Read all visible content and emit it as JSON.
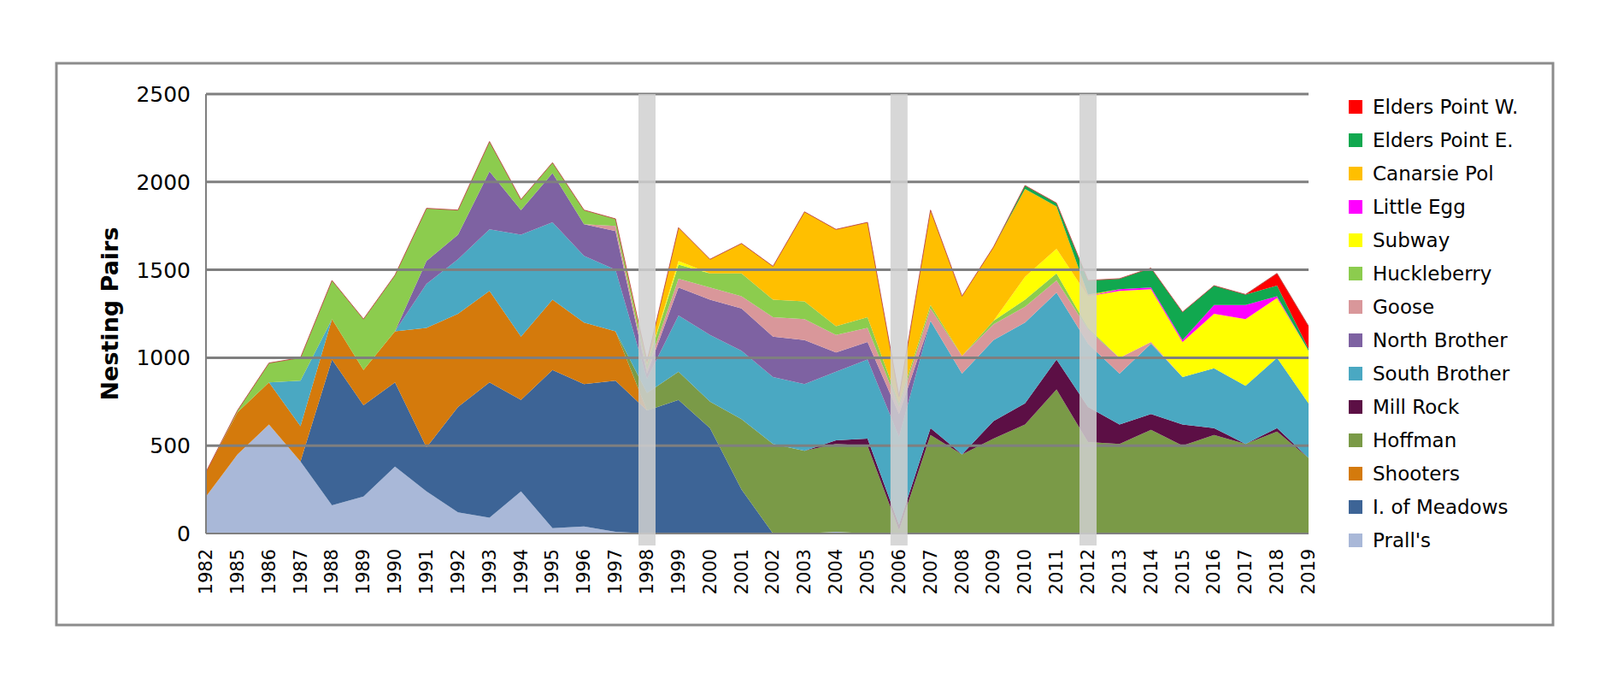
{
  "chart_data": {
    "type": "area",
    "stacked": true,
    "grid": true,
    "legend": "right",
    "y_label": "Nesting Pairs",
    "categories": [
      "1982",
      "1985",
      "1986",
      "1987",
      "1988",
      "1989",
      "1990",
      "1991",
      "1992",
      "1993",
      "1994",
      "1995",
      "1996",
      "1997",
      "1998",
      "1999",
      "2000",
      "2001",
      "2002",
      "2003",
      "2004",
      "2005",
      "2006",
      "2007",
      "2008",
      "2009",
      "2010",
      "2011",
      "2012",
      "2013",
      "2014",
      "2015",
      "2016",
      "2017",
      "2018",
      "2019"
    ],
    "bands": [
      "1998",
      "2006",
      "2012"
    ],
    "ylim": [
      0,
      2500
    ],
    "yticks": [
      0,
      500,
      1000,
      1500,
      2000,
      2500
    ],
    "series": [
      {
        "name": "Prall's",
        "color": "#a9b8d8",
        "values": [
          210,
          450,
          620,
          410,
          160,
          210,
          380,
          240,
          120,
          90,
          240,
          30,
          40,
          10,
          0,
          0,
          0,
          0,
          0,
          0,
          10,
          0,
          0,
          0,
          0,
          0,
          0,
          0,
          0,
          0,
          0,
          0,
          0,
          0,
          0,
          0
        ]
      },
      {
        "name": "I. of Meadows",
        "color": "#3d6496",
        "values": [
          0,
          0,
          0,
          0,
          830,
          520,
          480,
          250,
          600,
          770,
          520,
          900,
          810,
          860,
          700,
          760,
          600,
          250,
          0,
          0,
          0,
          0,
          0,
          0,
          0,
          0,
          0,
          0,
          0,
          0,
          0,
          0,
          0,
          0,
          0,
          0
        ]
      },
      {
        "name": "Shooters",
        "color": "#d47a0c",
        "values": [
          140,
          240,
          240,
          200,
          230,
          200,
          290,
          680,
          530,
          520,
          360,
          400,
          350,
          280,
          0,
          0,
          0,
          0,
          0,
          0,
          0,
          0,
          0,
          0,
          0,
          0,
          0,
          0,
          0,
          0,
          0,
          0,
          0,
          0,
          0,
          0
        ]
      },
      {
        "name": "Hoffman",
        "color": "#7a9a47",
        "values": [
          0,
          0,
          0,
          0,
          0,
          0,
          0,
          0,
          0,
          0,
          0,
          0,
          0,
          0,
          100,
          160,
          150,
          400,
          510,
          470,
          500,
          500,
          20,
          560,
          450,
          540,
          620,
          820,
          520,
          510,
          590,
          500,
          560,
          510,
          580,
          430
        ]
      },
      {
        "name": "Mill Rock",
        "color": "#5c0f45",
        "values": [
          0,
          0,
          0,
          0,
          0,
          0,
          0,
          0,
          0,
          0,
          0,
          0,
          0,
          0,
          0,
          0,
          0,
          0,
          0,
          0,
          20,
          40,
          30,
          40,
          0,
          100,
          120,
          170,
          200,
          110,
          90,
          120,
          40,
          0,
          20,
          0
        ]
      },
      {
        "name": "South Brother",
        "color": "#4aa8c2",
        "values": [
          0,
          0,
          0,
          260,
          0,
          0,
          0,
          250,
          310,
          350,
          580,
          440,
          380,
          350,
          80,
          320,
          380,
          390,
          380,
          380,
          390,
          450,
          500,
          610,
          460,
          460,
          460,
          380,
          360,
          290,
          400,
          270,
          340,
          330,
          400,
          310
        ]
      },
      {
        "name": "North Brother",
        "color": "#7e62a2",
        "values": [
          0,
          0,
          0,
          0,
          0,
          0,
          0,
          130,
          140,
          330,
          140,
          280,
          180,
          220,
          30,
          160,
          200,
          240,
          230,
          250,
          110,
          100,
          130,
          0,
          0,
          0,
          0,
          0,
          0,
          0,
          0,
          0,
          0,
          0,
          0,
          0
        ]
      },
      {
        "name": "Goose",
        "color": "#d9979a",
        "values": [
          0,
          0,
          0,
          0,
          0,
          0,
          0,
          0,
          0,
          0,
          0,
          0,
          0,
          30,
          20,
          50,
          70,
          70,
          110,
          120,
          100,
          80,
          40,
          70,
          100,
          90,
          90,
          70,
          80,
          90,
          10,
          0,
          0,
          0,
          0,
          0
        ]
      },
      {
        "name": "Huckleberry",
        "color": "#8ccc4e",
        "values": [
          0,
          10,
          110,
          130,
          220,
          290,
          320,
          300,
          140,
          170,
          60,
          60,
          80,
          40,
          30,
          80,
          80,
          130,
          100,
          100,
          50,
          60,
          20,
          20,
          0,
          20,
          40,
          40,
          10,
          0,
          0,
          0,
          0,
          0,
          0,
          0
        ]
      },
      {
        "name": "Subway",
        "color": "#ffff00",
        "values": [
          0,
          0,
          0,
          0,
          0,
          0,
          0,
          0,
          0,
          0,
          0,
          0,
          0,
          0,
          0,
          20,
          0,
          0,
          0,
          0,
          0,
          0,
          0,
          0,
          0,
          0,
          130,
          140,
          180,
          380,
          300,
          200,
          310,
          380,
          340,
          300
        ]
      },
      {
        "name": "Little Egg",
        "color": "#ff00ff",
        "values": [
          0,
          0,
          0,
          0,
          0,
          0,
          0,
          0,
          0,
          0,
          0,
          0,
          0,
          0,
          0,
          0,
          0,
          0,
          0,
          0,
          0,
          0,
          0,
          0,
          0,
          0,
          0,
          0,
          0,
          10,
          10,
          10,
          50,
          80,
          10,
          0
        ]
      },
      {
        "name": "Canarsie Pol",
        "color": "#ffbf00",
        "values": [
          0,
          0,
          0,
          0,
          0,
          0,
          0,
          0,
          0,
          0,
          0,
          0,
          0,
          0,
          20,
          190,
          80,
          170,
          190,
          510,
          550,
          540,
          40,
          540,
          340,
          420,
          500,
          240,
          10,
          0,
          0,
          0,
          0,
          0,
          0,
          0
        ]
      },
      {
        "name": "Elders Point E.",
        "color": "#11a84f",
        "values": [
          0,
          0,
          0,
          0,
          0,
          0,
          0,
          0,
          0,
          0,
          0,
          0,
          0,
          0,
          0,
          0,
          0,
          0,
          0,
          0,
          0,
          0,
          0,
          0,
          0,
          0,
          20,
          20,
          80,
          60,
          110,
          160,
          110,
          60,
          60,
          10
        ]
      },
      {
        "name": "Elders Point W.",
        "color": "#ff0000",
        "values": [
          0,
          0,
          0,
          0,
          0,
          0,
          0,
          0,
          0,
          0,
          0,
          0,
          0,
          0,
          0,
          0,
          0,
          0,
          0,
          0,
          0,
          0,
          0,
          0,
          0,
          0,
          0,
          0,
          0,
          0,
          0,
          0,
          0,
          0,
          70,
          130
        ]
      }
    ]
  }
}
